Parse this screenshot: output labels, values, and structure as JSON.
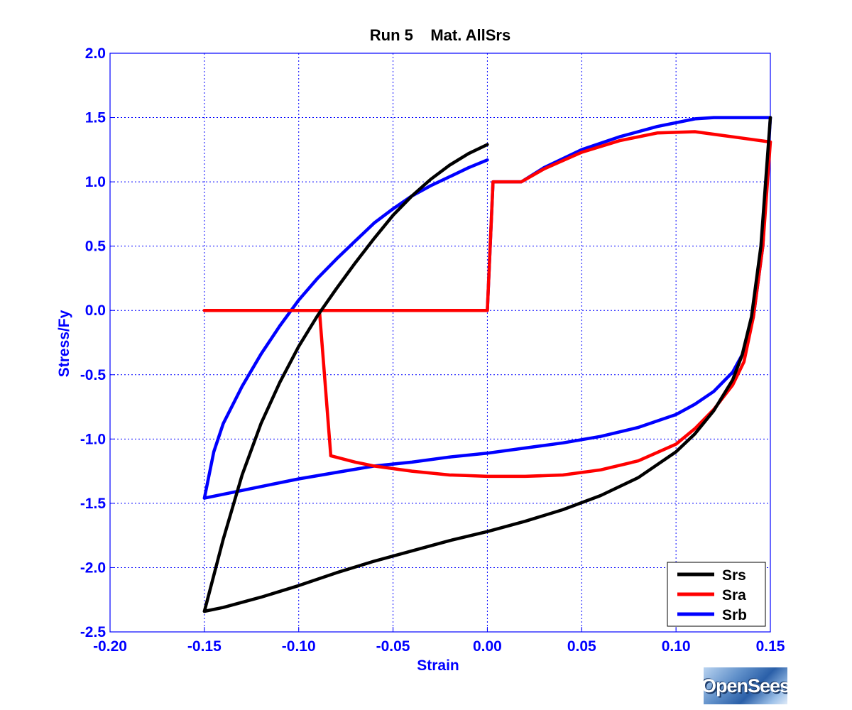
{
  "chart_data": {
    "type": "line",
    "title": "Run 5    Mat. AllSrs",
    "xlabel": "Strain",
    "ylabel": "Stress/Fy",
    "xlim": [
      -0.2,
      0.15
    ],
    "ylim": [
      -2.5,
      2.0
    ],
    "xticks": [
      -0.2,
      -0.15,
      -0.1,
      -0.05,
      0.0,
      0.05,
      0.1,
      0.15
    ],
    "xtick_labels": [
      "-0.20",
      "-0.15",
      "-0.10",
      "-0.05",
      "0.00",
      "0.05",
      "0.10",
      "0.15"
    ],
    "yticks": [
      2.0,
      1.5,
      1.0,
      0.5,
      0.0,
      -0.5,
      -1.0,
      -1.5,
      -2.0,
      -2.5
    ],
    "ytick_labels": [
      "2.0",
      "1.5",
      "1.0",
      "0.5",
      "0.0",
      "-0.5",
      "-1.0",
      "-1.5",
      "-2.0",
      "-2.5"
    ],
    "grid": true,
    "legend_position": "bottom-right",
    "series": [
      {
        "name": "Srs",
        "color": "#000000",
        "segments": [
          [
            [
              0.0,
              1.29
            ],
            [
              -0.01,
              1.22
            ],
            [
              -0.02,
              1.13
            ],
            [
              -0.03,
              1.02
            ],
            [
              -0.04,
              0.89
            ],
            [
              -0.05,
              0.74
            ],
            [
              -0.06,
              0.56
            ],
            [
              -0.07,
              0.37
            ],
            [
              -0.08,
              0.17
            ],
            [
              -0.09,
              -0.04
            ],
            [
              -0.1,
              -0.28
            ],
            [
              -0.11,
              -0.56
            ],
            [
              -0.12,
              -0.88
            ],
            [
              -0.13,
              -1.28
            ],
            [
              -0.14,
              -1.78
            ],
            [
              -0.15,
              -2.34
            ]
          ],
          [
            [
              -0.15,
              -2.34
            ],
            [
              -0.14,
              -2.31
            ],
            [
              -0.12,
              -2.23
            ],
            [
              -0.1,
              -2.14
            ],
            [
              -0.08,
              -2.04
            ],
            [
              -0.06,
              -1.95
            ],
            [
              -0.04,
              -1.87
            ],
            [
              -0.02,
              -1.79
            ],
            [
              0.0,
              -1.72
            ],
            [
              0.02,
              -1.64
            ],
            [
              0.04,
              -1.55
            ],
            [
              0.06,
              -1.44
            ],
            [
              0.08,
              -1.3
            ],
            [
              0.1,
              -1.1
            ],
            [
              0.11,
              -0.96
            ],
            [
              0.12,
              -0.78
            ],
            [
              0.13,
              -0.54
            ],
            [
              0.135,
              -0.35
            ],
            [
              0.14,
              -0.05
            ],
            [
              0.145,
              0.5
            ],
            [
              0.15,
              1.5
            ]
          ]
        ]
      },
      {
        "name": "Sra",
        "color": "#ff0000",
        "segments": [
          [
            [
              0.0,
              0.0
            ],
            [
              0.003,
              1.0
            ],
            [
              0.018,
              1.0
            ],
            [
              0.03,
              1.1
            ],
            [
              0.05,
              1.23
            ],
            [
              0.07,
              1.32
            ],
            [
              0.09,
              1.38
            ],
            [
              0.11,
              1.39
            ],
            [
              0.13,
              1.35
            ],
            [
              0.15,
              1.31
            ]
          ],
          [
            [
              0.15,
              1.31
            ],
            [
              0.146,
              0.5
            ],
            [
              0.141,
              -0.05
            ],
            [
              0.136,
              -0.4
            ],
            [
              0.13,
              -0.58
            ],
            [
              0.12,
              -0.77
            ],
            [
              0.11,
              -0.92
            ],
            [
              0.1,
              -1.04
            ],
            [
              0.08,
              -1.17
            ],
            [
              0.06,
              -1.24
            ],
            [
              0.04,
              -1.28
            ],
            [
              0.02,
              -1.29
            ],
            [
              0.0,
              -1.29
            ],
            [
              -0.02,
              -1.28
            ],
            [
              -0.04,
              -1.25
            ],
            [
              -0.06,
              -1.21
            ],
            [
              -0.07,
              -1.18
            ],
            [
              -0.083,
              -1.13
            ]
          ],
          [
            [
              -0.083,
              -1.13
            ],
            [
              -0.089,
              0.0
            ]
          ],
          [
            [
              -0.089,
              0.0
            ],
            [
              -0.15,
              0.0
            ]
          ],
          [
            [
              -0.15,
              0.0
            ],
            [
              0.0,
              0.0
            ]
          ]
        ]
      },
      {
        "name": "Srb",
        "color": "#0000ff",
        "segments": [
          [
            [
              0.0,
              0.0
            ],
            [
              0.003,
              1.0
            ],
            [
              0.018,
              1.0
            ],
            [
              0.03,
              1.11
            ],
            [
              0.05,
              1.25
            ],
            [
              0.07,
              1.35
            ],
            [
              0.09,
              1.43
            ],
            [
              0.11,
              1.49
            ],
            [
              0.12,
              1.5
            ],
            [
              0.15,
              1.5
            ]
          ],
          [
            [
              0.15,
              1.5
            ],
            [
              0.146,
              0.5
            ],
            [
              0.141,
              -0.05
            ],
            [
              0.136,
              -0.32
            ],
            [
              0.13,
              -0.48
            ],
            [
              0.12,
              -0.63
            ],
            [
              0.11,
              -0.73
            ],
            [
              0.1,
              -0.81
            ],
            [
              0.08,
              -0.91
            ],
            [
              0.06,
              -0.98
            ],
            [
              0.04,
              -1.03
            ],
            [
              0.02,
              -1.07
            ],
            [
              0.0,
              -1.11
            ],
            [
              -0.02,
              -1.14
            ],
            [
              -0.04,
              -1.18
            ],
            [
              -0.06,
              -1.21
            ],
            [
              -0.08,
              -1.26
            ],
            [
              -0.1,
              -1.31
            ],
            [
              -0.12,
              -1.37
            ],
            [
              -0.14,
              -1.43
            ],
            [
              -0.15,
              -1.46
            ]
          ],
          [
            [
              -0.15,
              -1.46
            ],
            [
              -0.145,
              -1.1
            ],
            [
              -0.14,
              -0.88
            ],
            [
              -0.13,
              -0.59
            ],
            [
              -0.12,
              -0.34
            ],
            [
              -0.11,
              -0.12
            ],
            [
              -0.1,
              0.08
            ],
            [
              -0.09,
              0.25
            ],
            [
              -0.08,
              0.4
            ],
            [
              -0.07,
              0.54
            ],
            [
              -0.06,
              0.68
            ],
            [
              -0.05,
              0.79
            ],
            [
              -0.04,
              0.89
            ],
            [
              -0.03,
              0.97
            ],
            [
              -0.02,
              1.04
            ],
            [
              -0.01,
              1.11
            ],
            [
              0.0,
              1.17
            ]
          ]
        ]
      }
    ]
  },
  "logo": {
    "text": "OpenSees"
  }
}
